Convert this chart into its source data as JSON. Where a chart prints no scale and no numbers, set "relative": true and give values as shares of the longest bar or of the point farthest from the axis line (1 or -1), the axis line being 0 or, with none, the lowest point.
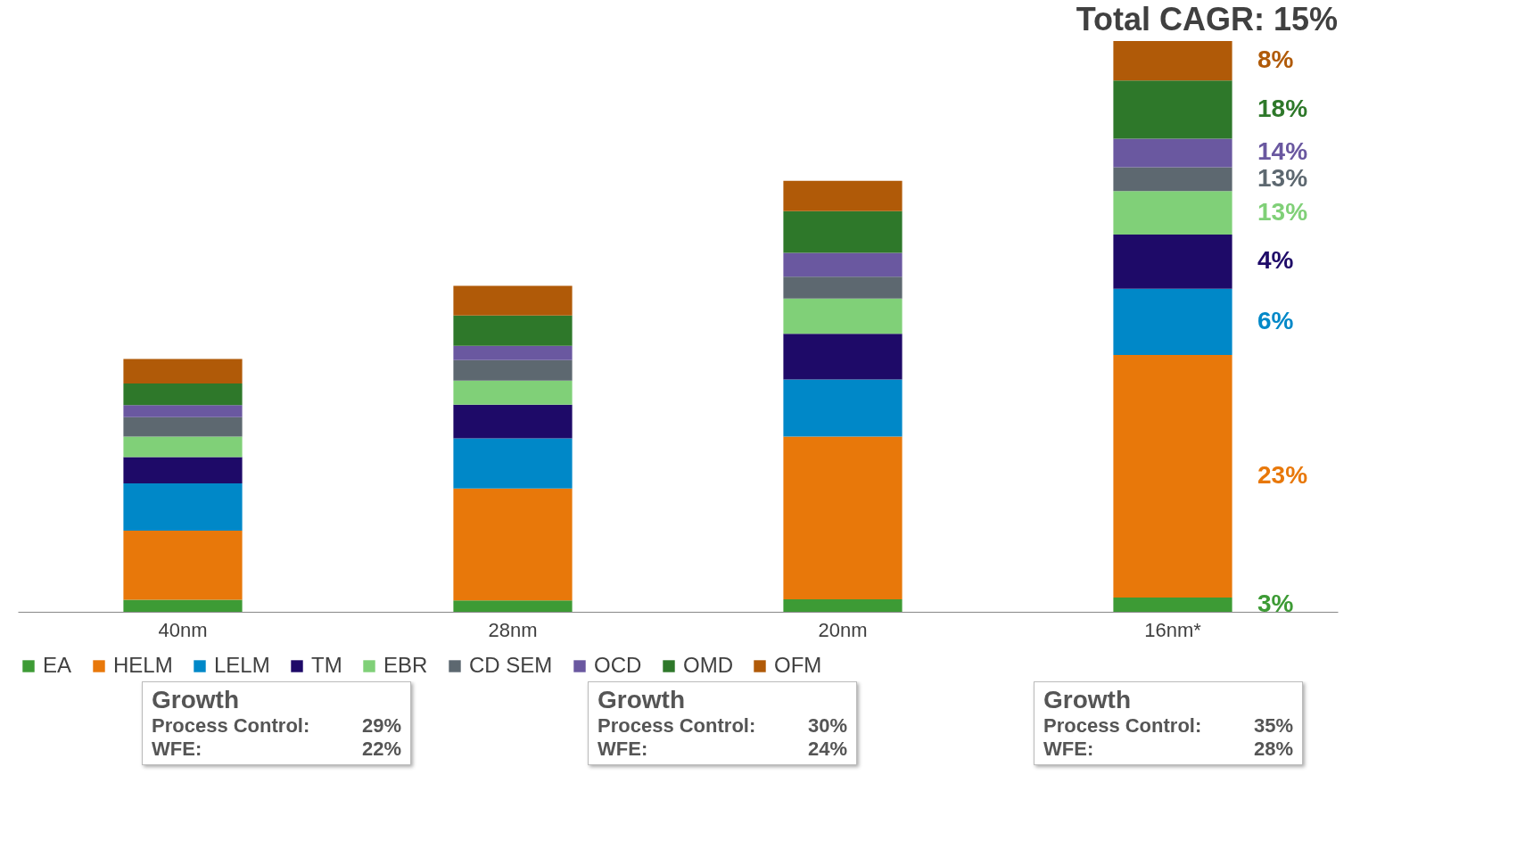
{
  "chart_data": {
    "type": "bar",
    "stacked": true,
    "relative": true,
    "legend": "bottom",
    "title": "Total CAGR: 15%",
    "categories": [
      "40nm",
      "28nm",
      "20nm",
      "16nm*"
    ],
    "series": [
      {
        "name": "EA",
        "color": "#3d9b35",
        "values": [
          0.021,
          0.02,
          0.022,
          0.025
        ]
      },
      {
        "name": "HELM",
        "color": "#e8780a",
        "values": [
          0.121,
          0.196,
          0.285,
          0.425
        ]
      },
      {
        "name": "LELM",
        "color": "#0088c8",
        "values": [
          0.083,
          0.088,
          0.1,
          0.116
        ]
      },
      {
        "name": "TM",
        "color": "#1e0a68",
        "values": [
          0.046,
          0.059,
          0.08,
          0.095
        ]
      },
      {
        "name": "EBR",
        "color": "#80d078",
        "values": [
          0.036,
          0.042,
          0.062,
          0.076
        ]
      },
      {
        "name": "CD SEM",
        "color": "#5d6870",
        "values": [
          0.034,
          0.036,
          0.038,
          0.042
        ]
      },
      {
        "name": "OCD",
        "color": "#6a58a0",
        "values": [
          0.021,
          0.025,
          0.042,
          0.05
        ]
      },
      {
        "name": "OMD",
        "color": "#2e782a",
        "values": [
          0.038,
          0.053,
          0.073,
          0.102
        ]
      },
      {
        "name": "OFM",
        "color": "#b05a08",
        "values": [
          0.043,
          0.052,
          0.053,
          0.069
        ]
      }
    ],
    "annotations": [
      "3%",
      "23%",
      "6%",
      "4%",
      "13%",
      "13%",
      "14%",
      "18%",
      "8%",
      "Growth\nProcess Control: 29%\nWFE: 22%",
      "Growth\nProcess Control: 30%\nWFE: 24%",
      "Growth\nProcess Control: 35%\nWFE: 28%"
    ]
  }
}
